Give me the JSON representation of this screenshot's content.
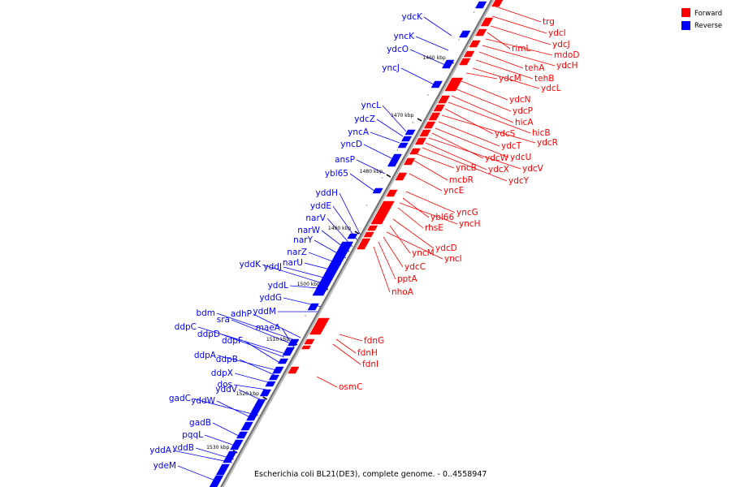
{
  "legend": {
    "items": [
      {
        "label": "Forward",
        "color": "#ff0000"
      },
      {
        "label": "Reverse",
        "color": "#0000ff"
      }
    ]
  },
  "caption": "Escherichia coli BL21(DE3), complete genome. - 0..4558947",
  "scale": [
    "1460 kbp",
    "1470 kbp",
    "1480 kbp",
    "1490 kbp",
    "1500 kbp",
    "1510 kbp",
    "1520 kbp",
    "1530 kbp"
  ],
  "forward_genes": [
    "trg",
    "ydcI",
    "ydcJ",
    "rimL",
    "mdoD",
    "ydcH",
    "tehA",
    "tehB",
    "ydcL",
    "ydcM",
    "ydcN",
    "ydcP",
    "hicA",
    "hicB",
    "ydcS",
    "ydcR",
    "ydcT",
    "ydcU",
    "ydcW",
    "ydcV",
    "ydcX",
    "ydcY",
    "yncB",
    "mcbR",
    "yncE",
    "yncG",
    "ybl66",
    "yncH",
    "rhsE",
    "ydcD",
    "yncM",
    "yncI",
    "ydcC",
    "pptA",
    "nhoA",
    "fdnG",
    "fdnH",
    "fdnI",
    "osmC"
  ],
  "reverse_genes": [
    "ydcK",
    "yncK",
    "ydcO",
    "yncJ",
    "yncL",
    "ydcZ",
    "yncA",
    "yncD",
    "ansP",
    "ybl65",
    "yddH",
    "yddE",
    "narV",
    "narW",
    "narY",
    "narZ",
    "narU",
    "yddK",
    "yddJ",
    "yddL",
    "yddG",
    "yddM",
    "bdm",
    "adhP",
    "sra",
    "maeA",
    "ddpC",
    "ddpD",
    "ddpF",
    "ddpA",
    "ddpB",
    "ddpX",
    "dos",
    "yddV",
    "gadC",
    "yddW",
    "gadB",
    "pqqL",
    "yddA",
    "yddB",
    "ydeM"
  ]
}
